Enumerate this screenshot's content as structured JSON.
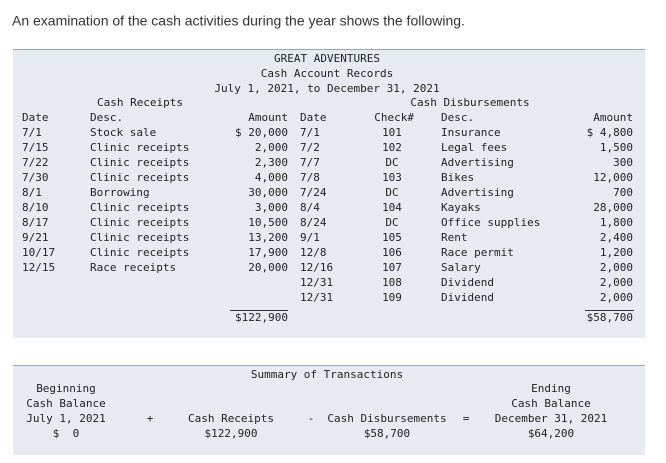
{
  "intro": "An examination of the cash activities during the year shows the following.",
  "header": {
    "lines": [
      "GREAT ADVENTURES",
      "Cash Account Records",
      "July 1, 2021, to December 31, 2021"
    ]
  },
  "receipts": {
    "heading": "Cash Receipts",
    "columns": [
      "Date",
      "Desc.",
      "Amount"
    ],
    "rows": [
      [
        "7/1",
        "Stock sale",
        "$ 20,000"
      ],
      [
        "7/15",
        "Clinic receipts",
        "2,000"
      ],
      [
        "7/22",
        "Clinic receipts",
        "2,300"
      ],
      [
        "7/30",
        "Clinic receipts",
        "4,000"
      ],
      [
        "8/1",
        "Borrowing",
        "30,000"
      ],
      [
        "8/10",
        "Clinic receipts",
        "3,000"
      ],
      [
        "8/17",
        "Clinic receipts",
        "10,500"
      ],
      [
        "9/21",
        "Clinic receipts",
        "13,200"
      ],
      [
        "10/17",
        "Clinic receipts",
        "17,900"
      ],
      [
        "12/15",
        "Race receipts",
        "20,000"
      ]
    ],
    "total": "$122,900"
  },
  "disbursements": {
    "heading": "Cash Disbursements",
    "columns": [
      "Date",
      "Check#",
      "Desc.",
      "Amount"
    ],
    "rows": [
      [
        "7/1",
        "101",
        "Insurance",
        "$ 4,800"
      ],
      [
        "7/2",
        "102",
        "Legal fees",
        "1,500"
      ],
      [
        "7/7",
        "DC",
        "Advertising",
        "300"
      ],
      [
        "7/8",
        "103",
        "Bikes",
        "12,000"
      ],
      [
        "7/24",
        "DC",
        "Advertising",
        "700"
      ],
      [
        "8/4",
        "104",
        "Kayaks",
        "28,000"
      ],
      [
        "8/24",
        "DC",
        "Office supplies",
        "1,800"
      ],
      [
        "9/1",
        "105",
        "Rent",
        "2,400"
      ],
      [
        "12/8",
        "106",
        "Race permit",
        "1,200"
      ],
      [
        "12/16",
        "107",
        "Salary",
        "2,000"
      ],
      [
        "12/31",
        "108",
        "Dividend",
        "2,000"
      ],
      [
        "12/31",
        "109",
        "Dividend",
        "2,000"
      ]
    ],
    "total": "$58,700"
  },
  "summary": {
    "title": "Summary of Transactions",
    "beginning": [
      "Beginning",
      "Cash Balance",
      "July 1, 2021",
      "$  0"
    ],
    "plus": "+",
    "receipts": [
      "Cash Receipts",
      "$122,900"
    ],
    "minus": "-",
    "disbursements": [
      "Cash Disbursements",
      "$58,700"
    ],
    "equals": "=",
    "ending": [
      "Ending",
      "Cash Balance",
      "December 31, 2021",
      "$64,200"
    ]
  }
}
